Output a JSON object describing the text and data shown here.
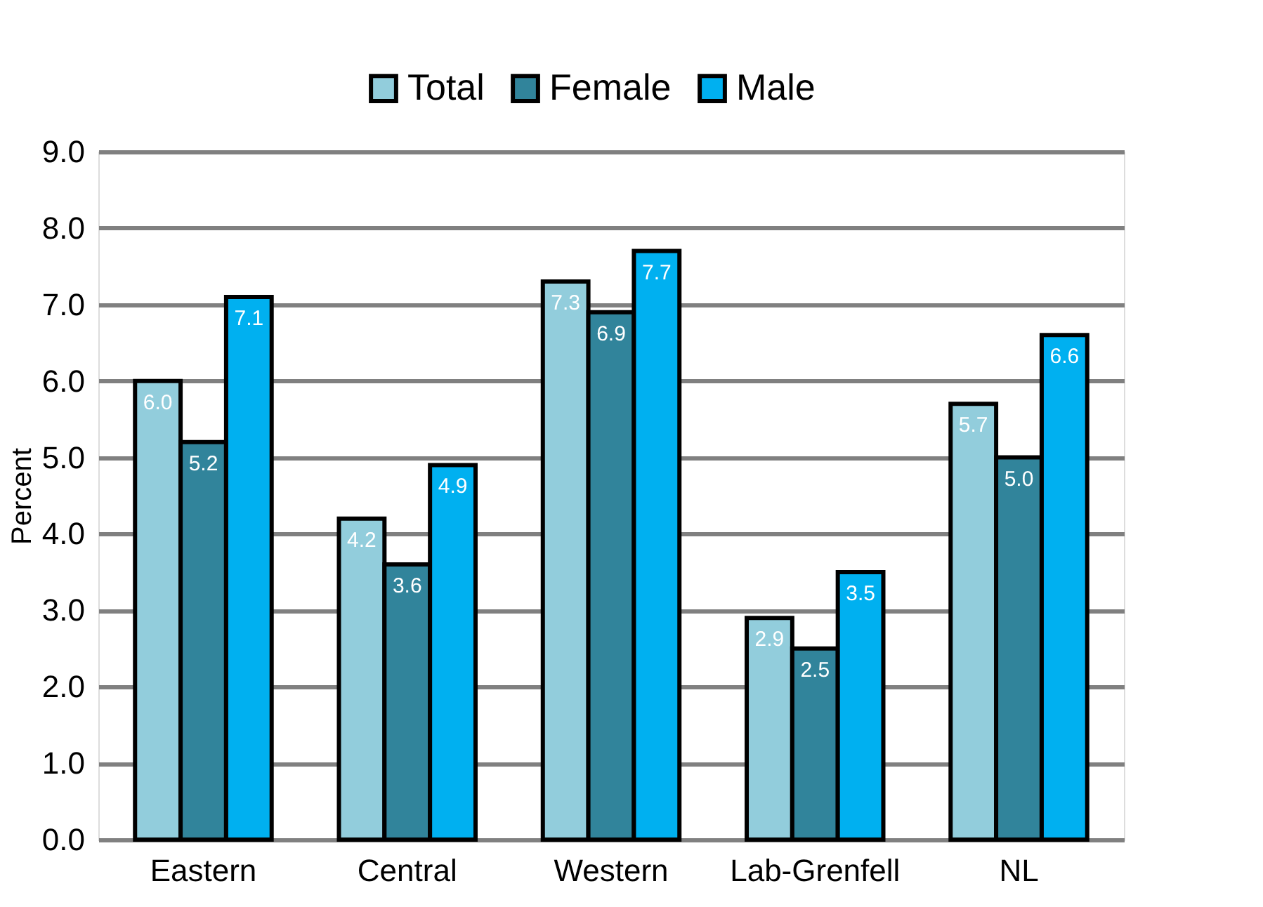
{
  "chart_data": {
    "type": "bar",
    "categories": [
      "Eastern",
      "Central",
      "Western",
      "Lab-Grenfell",
      "NL"
    ],
    "ylabel": "Percent",
    "series": [
      {
        "name": "Total",
        "color": "#92cddc",
        "values": [
          6.0,
          4.2,
          7.3,
          2.9,
          5.7
        ],
        "value_labels": [
          "6.0",
          "4.2",
          "7.3",
          "2.9",
          "5.7"
        ]
      },
      {
        "name": "Female",
        "color": "#31849b",
        "values": [
          5.2,
          3.6,
          6.9,
          2.5,
          5.0
        ],
        "value_labels": [
          "5.2",
          "3.6",
          "6.9",
          "2.5",
          "5.0"
        ]
      },
      {
        "name": "Male",
        "color": "#00b0f0",
        "values": [
          7.1,
          4.9,
          7.7,
          3.5,
          6.6
        ],
        "value_labels": [
          "7.1",
          "4.9",
          "7.7",
          "3.5",
          "6.6"
        ]
      }
    ],
    "ylim": [
      0,
      9
    ],
    "yticks": [
      {
        "value": 0,
        "label": "0.0"
      },
      {
        "value": 1,
        "label": "1.0"
      },
      {
        "value": 2,
        "label": "2.0"
      },
      {
        "value": 3,
        "label": "3.0"
      },
      {
        "value": 4,
        "label": "4.0"
      },
      {
        "value": 5,
        "label": "5.0"
      },
      {
        "value": 6,
        "label": "6.0"
      },
      {
        "value": 7,
        "label": "7.0"
      },
      {
        "value": 8,
        "label": "8.0"
      },
      {
        "value": 9,
        "label": "9.0"
      }
    ],
    "grid": "y",
    "legend": "top"
  }
}
